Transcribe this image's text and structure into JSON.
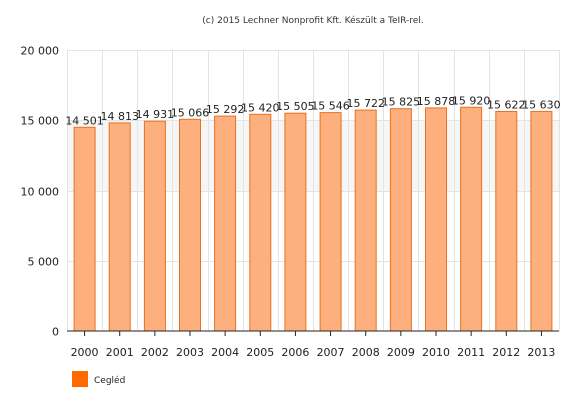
{
  "credit": "(c) 2015 Lechner Nonprofit Kft. Készült a TeIR-rel.",
  "colors": {
    "bar_fill": "#FDB07E",
    "bar_stroke": "#E8731F",
    "legend_swatch": "#FF6A00",
    "grid": "#e4e4e4"
  },
  "chart_data": {
    "type": "bar",
    "title": "",
    "xlabel": "",
    "ylabel": "",
    "categories": [
      "2000",
      "2001",
      "2002",
      "2003",
      "2004",
      "2005",
      "2006",
      "2007",
      "2008",
      "2009",
      "2010",
      "2011",
      "2012",
      "2013"
    ],
    "series": [
      {
        "name": "Cegléd",
        "values": [
          14501,
          14813,
          14931,
          15066,
          15292,
          15420,
          15505,
          15546,
          15722,
          15825,
          15878,
          15920,
          15622,
          15630
        ],
        "labels": [
          "14 501",
          "14 813",
          "14 931",
          "15 066",
          "15 292",
          "15 420",
          "15 505",
          "15 546",
          "15 722",
          "15 825",
          "15 878",
          "15 920",
          "15 622",
          "15 630"
        ]
      }
    ],
    "ylim": [
      0,
      20000
    ],
    "yticks": [
      0,
      5000,
      10000,
      15000,
      20000
    ],
    "ytick_labels": [
      "0",
      "5 000",
      "10 000",
      "15 000",
      "20 000"
    ],
    "grid": true,
    "legend": "bottom-left"
  }
}
